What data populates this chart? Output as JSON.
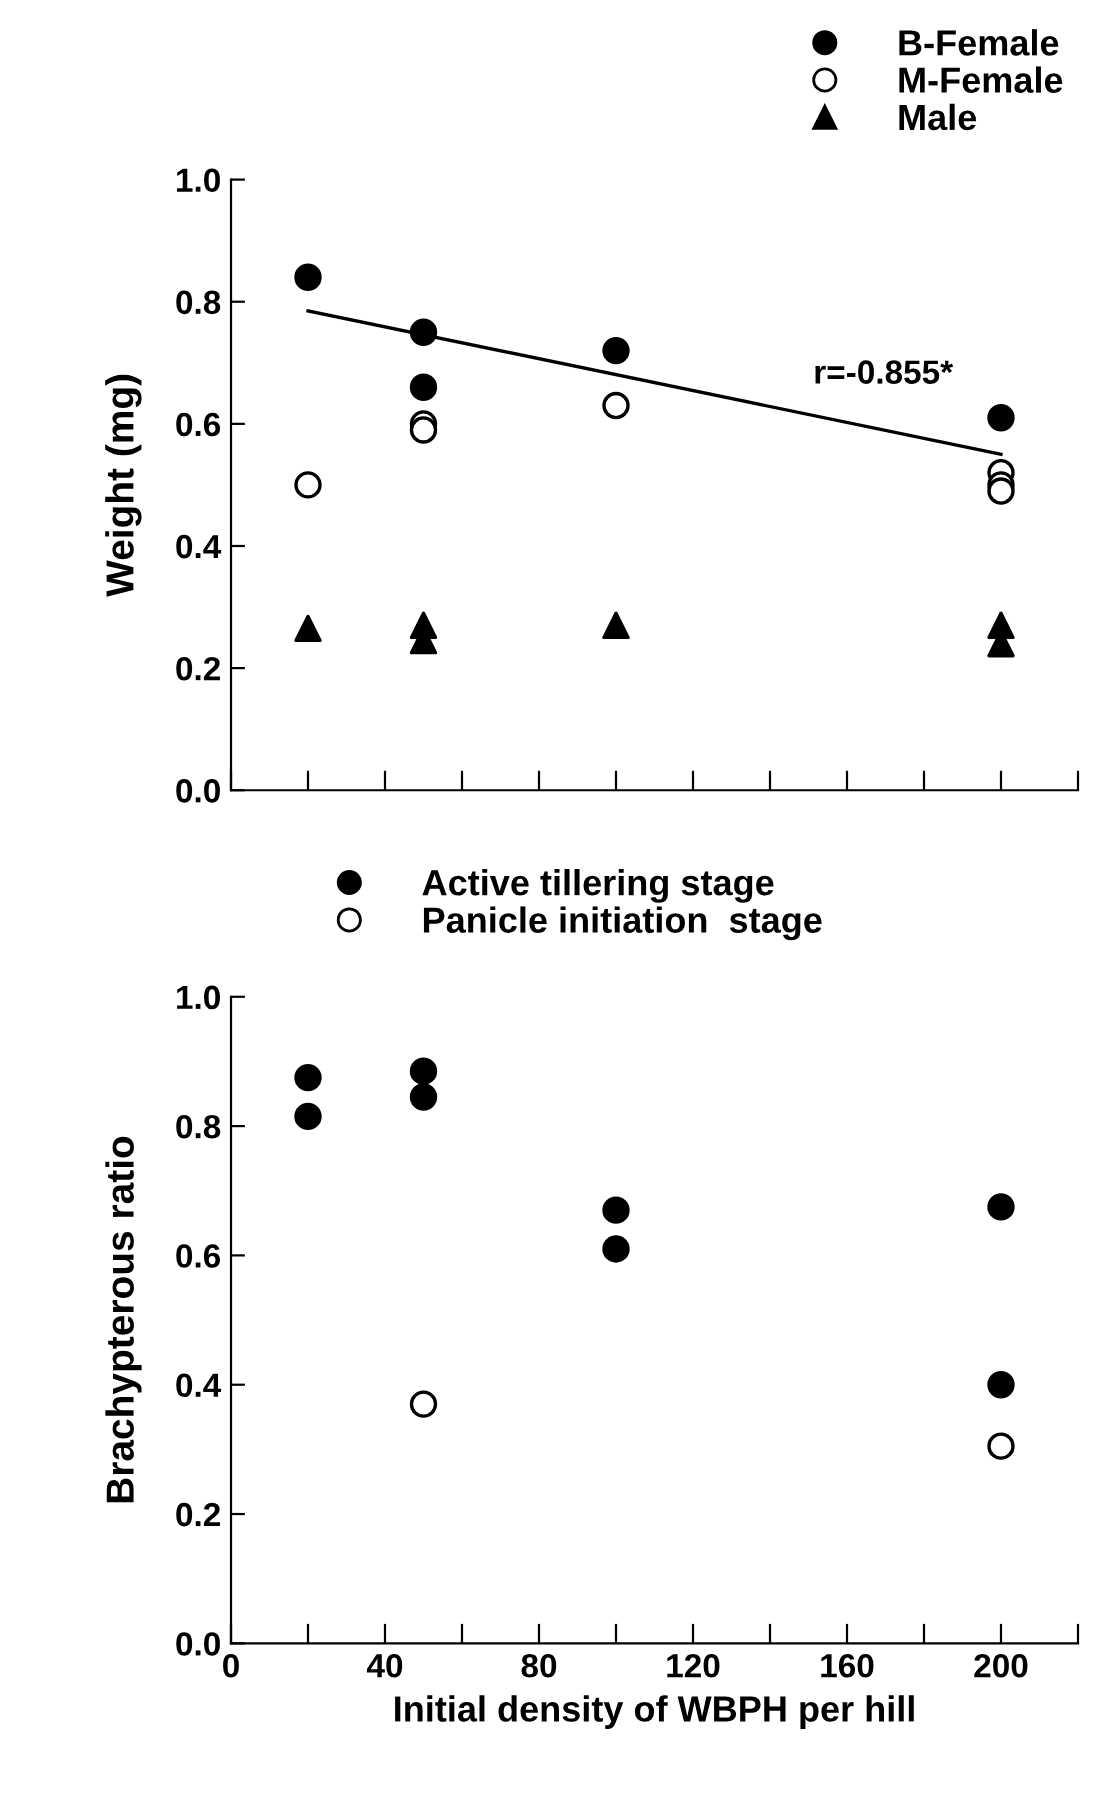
{
  "chart_data": [
    {
      "type": "scatter",
      "ylabel": "Weight (mg)",
      "xlim": [
        0,
        220
      ],
      "ylim": [
        0.0,
        1.0
      ],
      "xticks": [
        {
          "value": 0,
          "label": null
        },
        {
          "value": 20,
          "label": null
        },
        {
          "value": 40,
          "label": null
        },
        {
          "value": 60,
          "label": null
        },
        {
          "value": 80,
          "label": null
        },
        {
          "value": 100,
          "label": null
        },
        {
          "value": 120,
          "label": null
        },
        {
          "value": 140,
          "label": null
        },
        {
          "value": 160,
          "label": null
        },
        {
          "value": 180,
          "label": null
        },
        {
          "value": 200,
          "label": null
        },
        {
          "value": 220,
          "label": null
        }
      ],
      "yticks": [
        {
          "value": 0,
          "label": "0.0"
        },
        {
          "value": 0.2,
          "label": "0.2"
        },
        {
          "value": 0.4,
          "label": "0.4"
        },
        {
          "value": 0.6,
          "label": "0.6"
        },
        {
          "value": 0.8,
          "label": "0.8"
        },
        {
          "value": 1.0,
          "label": "1.0"
        }
      ],
      "tick_labels": "y",
      "grid": false,
      "legend": "top right",
      "annotations": [
        "r=-0.855*"
      ],
      "series": [
        {
          "name": "B-Female",
          "color": "#000000",
          "marker": "circle",
          "x": [
            20,
            50,
            50,
            100,
            200
          ],
          "values": [
            0.84,
            0.75,
            0.66,
            0.72,
            0.61
          ]
        },
        {
          "name": "M-Female",
          "color": "#ffffff",
          "marker": "circle",
          "x": [
            20,
            50,
            50,
            100,
            200,
            200,
            200
          ],
          "values": [
            0.5,
            0.6,
            0.59,
            0.63,
            0.52,
            0.5,
            0.49
          ]
        },
        {
          "name": "Male",
          "color": "#000000",
          "marker": "triangle",
          "x": [
            20,
            50,
            50,
            100,
            200,
            200
          ],
          "values": [
            0.265,
            0.27,
            0.245,
            0.27,
            0.27,
            0.24
          ]
        },
        {
          "type": "line",
          "color": "#000000",
          "marker": "none",
          "line_style": "solid",
          "x": [
            20,
            200
          ],
          "values": [
            0.785,
            0.55
          ]
        }
      ]
    },
    {
      "type": "scatter",
      "xlabel": "Initial density of WBPH per hill",
      "ylabel": "Brachypterous ratio",
      "xlim": [
        0,
        220
      ],
      "ylim": [
        0.0,
        1.0
      ],
      "xticks": [
        0,
        {
          "value": 20,
          "label": null
        },
        40,
        {
          "value": 60,
          "label": null
        },
        80,
        {
          "value": 100,
          "label": null
        },
        120,
        {
          "value": 140,
          "label": null
        },
        160,
        {
          "value": 180,
          "label": null
        },
        200,
        {
          "value": 220,
          "label": null
        }
      ],
      "yticks": [
        {
          "value": 0,
          "label": "0.0"
        },
        {
          "value": 0.2,
          "label": "0.2"
        },
        {
          "value": 0.4,
          "label": "0.4"
        },
        {
          "value": 0.6,
          "label": "0.6"
        },
        {
          "value": 0.8,
          "label": "0.8"
        },
        {
          "value": 1.0,
          "label": "1.0"
        }
      ],
      "grid": false,
      "legend": "top left",
      "series": [
        {
          "name": "Active tillering stage",
          "color": "#000000",
          "marker": "circle",
          "x": [
            20,
            20,
            50,
            50,
            100,
            100,
            200,
            200
          ],
          "values": [
            0.875,
            0.815,
            0.885,
            0.845,
            0.67,
            0.61,
            0.675,
            0.4
          ]
        },
        {
          "name": "Panicle initiation  stage",
          "color": "#ffffff",
          "marker": "circle",
          "x": [
            50,
            200
          ],
          "values": [
            0.37,
            0.305
          ]
        }
      ]
    }
  ]
}
